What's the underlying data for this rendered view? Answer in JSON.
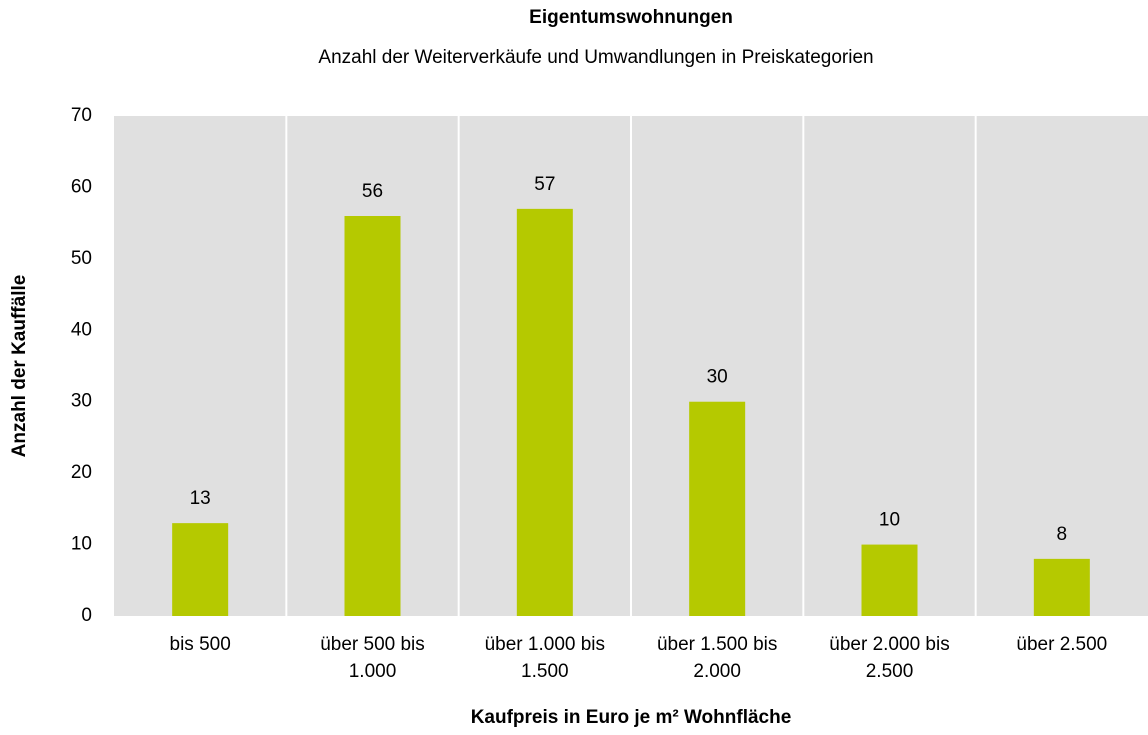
{
  "chart_data": {
    "type": "bar",
    "title": "Eigentumswohnungen",
    "subtitle": "Anzahl der Weiterverkäufe und Umwandlungen in Preiskategorien",
    "x_label": "Kaufpreis in Euro je m² Wohnfläche",
    "y_label": "Anzahl der Kauffälle",
    "categories": [
      "bis 500",
      "über 500 bis 1.000",
      "über 1.000 bis 1.500",
      "über 1.500 bis 2.000",
      "über 2.000 bis 2.500",
      "über 2.500"
    ],
    "values": [
      13,
      56,
      57,
      30,
      10,
      8
    ],
    "color": "#b5c900",
    "ylim": [
      0,
      70
    ],
    "yticks": [
      0,
      10,
      20,
      30,
      40,
      50,
      60,
      70
    ]
  }
}
